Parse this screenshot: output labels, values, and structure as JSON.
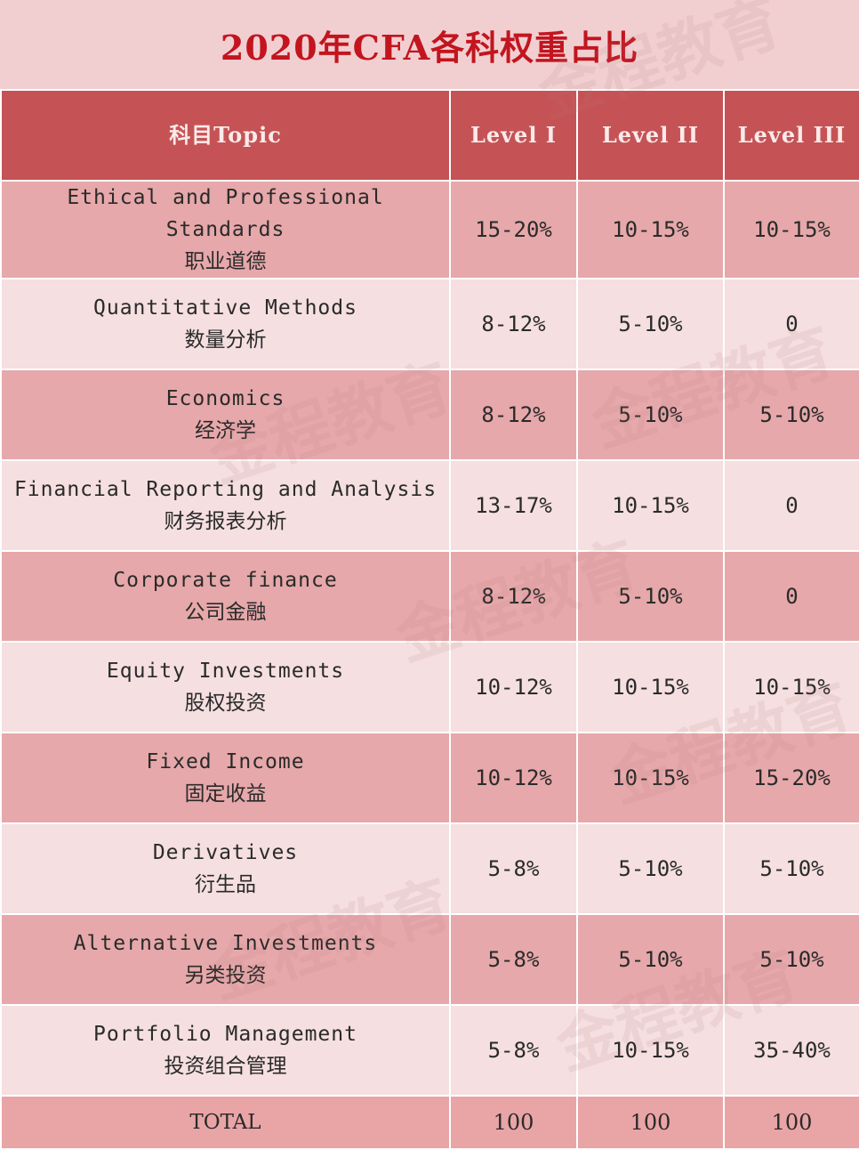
{
  "title": "2020年CFA各科权重占比",
  "header": {
    "topic": "科目Topic",
    "level1": "Level I",
    "level2": "Level II",
    "level3": "Level III"
  },
  "rows": [
    {
      "en": "Ethical and Professional Standards",
      "zh": "职业道德",
      "l1": "15-20%",
      "l2": "10-15%",
      "l3": "10-15%"
    },
    {
      "en": "Quantitative Methods",
      "zh": "数量分析",
      "l1": "8-12%",
      "l2": "5-10%",
      "l3": "0"
    },
    {
      "en": "Economics",
      "zh": "经济学",
      "l1": "8-12%",
      "l2": "5-10%",
      "l3": "5-10%"
    },
    {
      "en": "Financial Reporting and Analysis",
      "zh": "财务报表分析",
      "l1": "13-17%",
      "l2": "10-15%",
      "l3": "0"
    },
    {
      "en": "Corporate finance",
      "zh": "公司金融",
      "l1": "8-12%",
      "l2": "5-10%",
      "l3": "0"
    },
    {
      "en": "Equity Investments",
      "zh": "股权投资",
      "l1": "10-12%",
      "l2": "10-15%",
      "l3": "10-15%"
    },
    {
      "en": "Fixed Income",
      "zh": "固定收益",
      "l1": "10-12%",
      "l2": "10-15%",
      "l3": "15-20%"
    },
    {
      "en": "Derivatives",
      "zh": "衍生品",
      "l1": "5-8%",
      "l2": "5-10%",
      "l3": "5-10%"
    },
    {
      "en": "Alternative Investments",
      "zh": "另类投资",
      "l1": "5-8%",
      "l2": "5-10%",
      "l3": "5-10%"
    },
    {
      "en": "Portfolio Management",
      "zh": "投资组合管理",
      "l1": "5-8%",
      "l2": "10-15%",
      "l3": "35-40%"
    }
  ],
  "total": {
    "label": "TOTAL",
    "l1": "100",
    "l2": "100",
    "l3": "100"
  },
  "watermark": "金程教育"
}
